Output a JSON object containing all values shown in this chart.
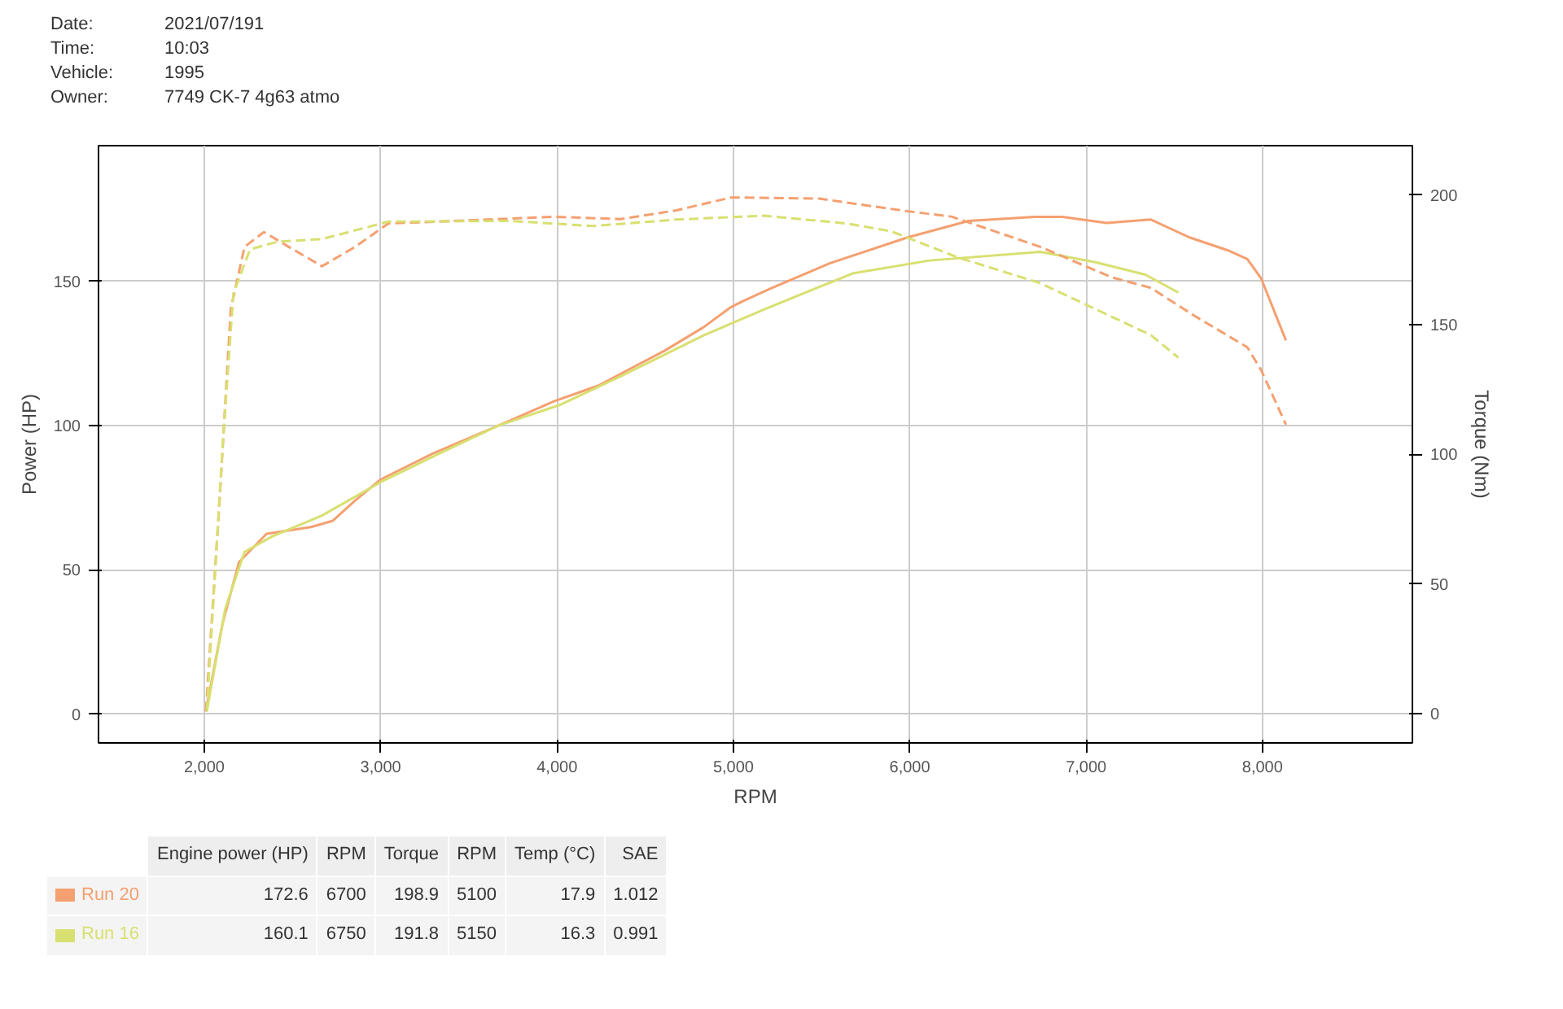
{
  "chart_data": {
    "type": "line",
    "xlabel": "RPM",
    "ylabel": "Power (HP)",
    "y2label": "Torque (Nm)",
    "xlim": [
      1400,
      8850
    ],
    "ylim": [
      -10,
      197
    ],
    "y2lim": [
      -11.2,
      219
    ],
    "xticks": [
      {
        "value": 2000,
        "label": "2,000"
      },
      {
        "value": 3000,
        "label": "3,000"
      },
      {
        "value": 4000,
        "label": "4,000"
      },
      {
        "value": 5000,
        "label": "5,000"
      },
      {
        "value": 6000,
        "label": "6,000"
      },
      {
        "value": 7000,
        "label": "7,000"
      },
      {
        "value": 8000,
        "label": "8,000"
      }
    ],
    "yticks": [
      0,
      50,
      100,
      150
    ],
    "y2ticks": [
      0,
      50,
      100,
      150,
      200
    ],
    "grid": true,
    "legend": "bottom left",
    "series": [
      {
        "name": "Run 20",
        "color": "#f4a070",
        "line_style": "solid",
        "x": [
          2009,
          2103,
          2197,
          2353,
          2604,
          2729,
          2855,
          3000,
          3293,
          3669,
          3983,
          4233,
          4609,
          4829,
          4985,
          5046,
          5205,
          5549,
          5988,
          6333,
          6709,
          6865,
          7116,
          7367,
          7586,
          7805,
          7914,
          7993,
          8133
        ],
        "values": [
          0.9,
          31.3,
          52.7,
          62.5,
          64.8,
          67,
          74,
          81.3,
          90.2,
          100,
          108.4,
          113.8,
          125.9,
          134,
          141,
          142.9,
          147.3,
          156.3,
          165.2,
          170.9,
          172.3,
          172.3,
          170.2,
          171.4,
          165.2,
          160.7,
          157.7,
          150.9,
          129.5
        ]
      },
      {
        "name": "Run 16",
        "color": "#d8e070",
        "line_style": "solid",
        "x": [
          2014,
          2119,
          2228,
          2385,
          2667,
          3000,
          3356,
          3669,
          4014,
          4359,
          4829,
          5173,
          5675,
          6113,
          6740,
          7053,
          7335,
          7523
        ],
        "values": [
          0.9,
          36.6,
          56.2,
          61.6,
          68.8,
          80.4,
          91,
          100,
          107.1,
          117,
          131.2,
          140.2,
          152.7,
          157.2,
          160.2,
          156.6,
          152.3,
          146.1
        ]
      },
      {
        "color": "#f4a070",
        "line_style": "dashed",
        "axis": "y2",
        "x": [
          2009,
          2087,
          2150,
          2228,
          2338,
          2479,
          2667,
          2855,
          3043,
          3419,
          3983,
          4359,
          4672,
          4985,
          5046,
          5487,
          5957,
          6239,
          6740,
          7147,
          7367,
          7617,
          7914,
          7993,
          8133
        ],
        "values": [
          1,
          82.6,
          156,
          180,
          185.7,
          180,
          172.5,
          180,
          189,
          190,
          191.6,
          190.7,
          194,
          199,
          199,
          198.6,
          194,
          191.6,
          180,
          168.2,
          164.2,
          153.3,
          141.3,
          132.4,
          111.5
        ]
      },
      {
        "color": "#d8e070",
        "line_style": "dashed",
        "axis": "y2",
        "x": [
          2014,
          2103,
          2165,
          2259,
          2416,
          2667,
          3043,
          3732,
          4202,
          4672,
          5173,
          5643,
          5894,
          6270,
          6740,
          7053,
          7367,
          7523
        ],
        "values": [
          1,
          102.5,
          162,
          179,
          182,
          183,
          189.7,
          190,
          188,
          190.5,
          192,
          189,
          186,
          176,
          166,
          156,
          146,
          137.3
        ]
      }
    ],
    "annotations": [
      "Date:",
      "2021/07/191",
      "Time:",
      "10:03",
      "Vehicle:",
      "1995",
      "Owner:",
      "7749 CK-7 4g63 atmo",
      "Engine power (HP)",
      "RPM",
      "Torque",
      "RPM",
      "Temp (°C)",
      "SAE",
      "172.6",
      "6700",
      "198.9",
      "5100",
      "17.9",
      "1.012",
      "160.1",
      "6750",
      "191.8",
      "5150",
      "16.3",
      "0.991"
    ]
  }
}
